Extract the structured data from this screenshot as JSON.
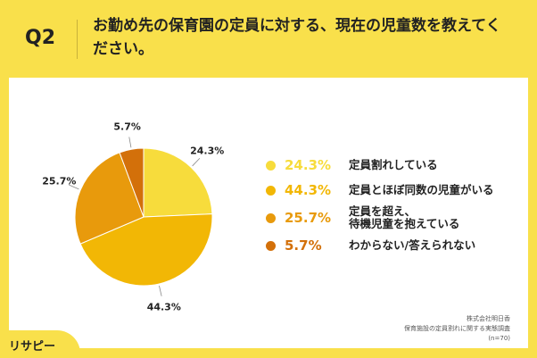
{
  "header": {
    "q_label": "Q2",
    "question": "お勤め先の保育園の定員に対する、現在の児童数を教えてください。"
  },
  "chart_data": {
    "type": "pie",
    "slices": [
      {
        "label": "定員割れしている",
        "value": 24.3,
        "value_label": "24.3%",
        "color": "#F7DC3C"
      },
      {
        "label": "定員とほぼ同数の児童がいる",
        "value": 44.3,
        "value_label": "44.3%",
        "color": "#F2B705"
      },
      {
        "label": "定員を超え、待機児童を抱えている",
        "value": 25.7,
        "value_label": "25.7%",
        "color": "#E89A0C"
      },
      {
        "label": "わからない/答えられない",
        "value": 5.7,
        "value_label": "5.7%",
        "color": "#D3700A"
      }
    ],
    "legend": "right"
  },
  "legend_items": [
    {
      "pct": "24.3%",
      "lines": [
        "定員割れしている"
      ],
      "color": "#F7DC3C"
    },
    {
      "pct": "44.3%",
      "lines": [
        "定員とほぼ同数の児童がいる"
      ],
      "color": "#F2B705"
    },
    {
      "pct": "25.7%",
      "lines": [
        "定員を超え、",
        "待機児童を抱えている"
      ],
      "color": "#E89A0C"
    },
    {
      "pct": "5.7%",
      "lines": [
        "わからない/答えられない"
      ],
      "color": "#D3700A"
    }
  ],
  "source": {
    "line1": "株式会社明日香",
    "line2": "保育施設の定員割れに関する実態調査",
    "line3": "(n=70)"
  },
  "logo": {
    "text": "リサピー"
  }
}
